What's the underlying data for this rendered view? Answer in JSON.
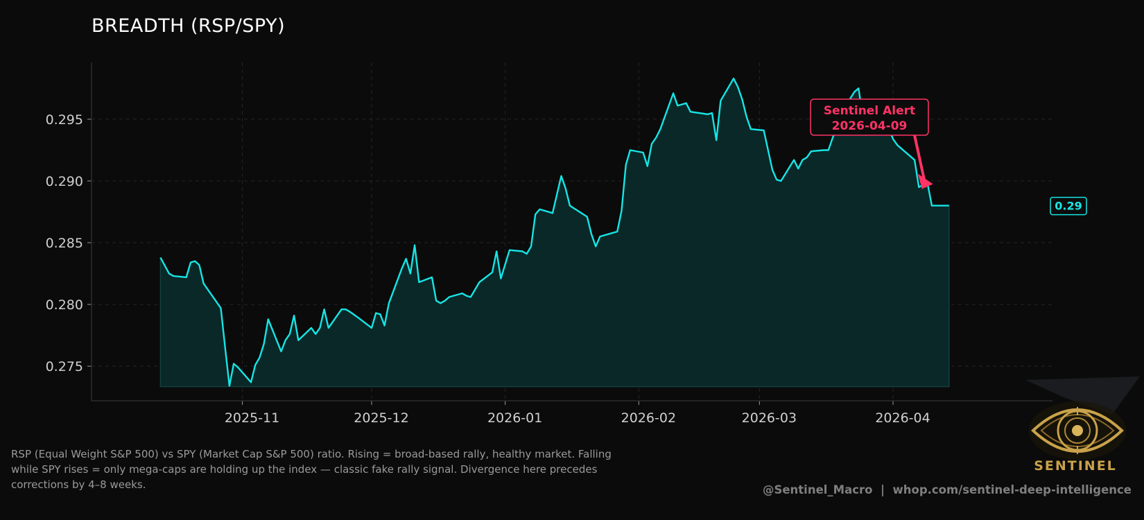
{
  "chart_data": {
    "type": "area",
    "title": "BREADTH (RSP/SPY)",
    "xlabel": "",
    "ylabel": "",
    "x_ticks": [
      "2025-11",
      "2025-12",
      "2026-01",
      "2026-02",
      "2026-03",
      "2026-04"
    ],
    "y_ticks": [
      "0.275",
      "0.280",
      "0.285",
      "0.290",
      "0.295"
    ],
    "ylim": [
      0.2722,
      0.2996
    ],
    "xlim": [
      "2025-09-27",
      "2026-05-08"
    ],
    "grid": true,
    "series": [
      {
        "x": [
          "2025-10-13",
          "2025-10-15",
          "2025-10-16",
          "2025-10-19",
          "2025-10-20",
          "2025-10-21",
          "2025-10-22",
          "2025-10-23",
          "2025-10-24",
          "2025-10-27",
          "2025-10-28",
          "2025-10-29",
          "2025-10-30",
          "2025-10-31",
          "2025-11-03",
          "2025-11-04",
          "2025-11-05",
          "2025-11-06",
          "2025-11-07",
          "2025-11-10",
          "2025-11-11",
          "2025-11-12",
          "2025-11-13",
          "2025-11-14",
          "2025-11-17",
          "2025-11-18",
          "2025-11-19",
          "2025-11-20",
          "2025-11-21",
          "2025-11-24",
          "2025-11-25",
          "2025-11-26",
          "2025-11-28",
          "2025-12-01",
          "2025-12-02",
          "2025-12-03",
          "2025-12-04",
          "2025-12-05",
          "2025-12-08",
          "2025-12-09",
          "2025-12-10",
          "2025-12-11",
          "2025-12-12",
          "2025-12-15",
          "2025-12-16",
          "2025-12-17",
          "2025-12-18",
          "2025-12-19",
          "2025-12-22",
          "2025-12-23",
          "2025-12-24",
          "2025-12-26",
          "2025-12-29",
          "2025-12-30",
          "2025-12-31",
          "2026-01-02",
          "2026-01-05",
          "2026-01-06",
          "2026-01-07",
          "2026-01-08",
          "2026-01-09",
          "2026-01-12",
          "2026-01-13",
          "2026-01-14",
          "2026-01-15",
          "2026-01-16",
          "2026-01-20",
          "2026-01-21",
          "2026-01-22",
          "2026-01-23",
          "2026-01-26",
          "2026-01-27",
          "2026-01-28",
          "2026-01-29",
          "2026-01-30",
          "2026-02-02",
          "2026-02-03",
          "2026-02-04",
          "2026-02-05",
          "2026-02-06",
          "2026-02-09",
          "2026-02-10",
          "2026-02-11",
          "2026-02-12",
          "2026-02-13",
          "2026-02-17",
          "2026-02-18",
          "2026-02-19",
          "2026-02-20",
          "2026-02-23",
          "2026-02-24",
          "2026-02-25",
          "2026-02-26",
          "2026-02-27",
          "2026-03-02",
          "2026-03-03",
          "2026-03-04",
          "2026-03-05",
          "2026-03-06",
          "2026-03-09",
          "2026-03-10",
          "2026-03-11",
          "2026-03-12",
          "2026-03-13",
          "2026-03-16",
          "2026-03-17",
          "2026-03-18",
          "2026-03-19",
          "2026-03-20",
          "2026-03-23",
          "2026-03-24",
          "2026-03-25",
          "2026-03-26",
          "2026-03-27",
          "2026-03-30",
          "2026-03-31",
          "2026-04-01",
          "2026-04-02",
          "2026-04-06",
          "2026-04-07",
          "2026-04-08",
          "2026-04-09",
          "2026-04-10",
          "2026-04-13",
          "2026-04-14"
        ],
        "y": [
          0.2838,
          0.2825,
          0.2823,
          0.2822,
          0.2834,
          0.2835,
          0.2832,
          0.2817,
          0.2812,
          0.2797,
          0.2765,
          0.2734,
          0.2752,
          0.2749,
          0.2737,
          0.2751,
          0.2757,
          0.2768,
          0.2788,
          0.2762,
          0.2771,
          0.2776,
          0.2791,
          0.2771,
          0.2781,
          0.2776,
          0.2781,
          0.2796,
          0.2781,
          0.2796,
          0.2796,
          0.2794,
          0.2789,
          0.2781,
          0.2793,
          0.2792,
          0.2783,
          0.2801,
          0.2829,
          0.2837,
          0.2825,
          0.2848,
          0.2818,
          0.2822,
          0.2803,
          0.2801,
          0.2803,
          0.2806,
          0.2809,
          0.2807,
          0.2806,
          0.2818,
          0.2826,
          0.2843,
          0.2821,
          0.2844,
          0.2843,
          0.2841,
          0.2847,
          0.2873,
          0.2877,
          0.2874,
          0.2889,
          0.2904,
          0.2894,
          0.288,
          0.2871,
          0.2857,
          0.2847,
          0.2855,
          0.2858,
          0.2859,
          0.2876,
          0.2913,
          0.2925,
          0.2923,
          0.2912,
          0.293,
          0.2935,
          0.2942,
          0.2971,
          0.2961,
          0.2962,
          0.2963,
          0.2956,
          0.2954,
          0.2955,
          0.2933,
          0.2965,
          0.2983,
          0.2976,
          0.2966,
          0.2952,
          0.2942,
          0.2941,
          0.2925,
          0.2909,
          0.2901,
          0.29,
          0.2917,
          0.291,
          0.2917,
          0.2919,
          0.2924,
          0.2925,
          0.2925,
          0.2935,
          0.2943,
          0.2955,
          0.2972,
          0.2975,
          0.2952,
          0.2939,
          0.2945,
          0.2944,
          0.2943,
          0.2934,
          0.2929,
          0.2917,
          0.2895,
          0.2897,
          0.2898,
          0.288,
          0.288,
          0.288
        ],
        "color": "#17e5e5"
      }
    ],
    "annotation": {
      "title": "Sentinel Alert",
      "date": "2026-04-09",
      "color": "#ff3366"
    },
    "last_value_label": "0.29"
  },
  "caption": "RSP (Equal Weight S&P 500) vs SPY (Market Cap S&P 500) ratio. Rising = broad-based rally, healthy market. Falling while SPY rises = only mega-caps are holding up the index — classic fake rally signal. Divergence here precedes corrections by 4–8 weeks.",
  "credit": "@Sentinel_Macro  |  whop.com/sentinel-deep-intelligence",
  "logo_text": "SENTINEL",
  "colors": {
    "background": "#0b0b0b",
    "line": "#17e5e5",
    "fill": "#0a2828",
    "alert": "#ff3366",
    "axis_text": "#d0d0d0",
    "grid": "#2a2a2a",
    "logo": "#c9a24a"
  }
}
